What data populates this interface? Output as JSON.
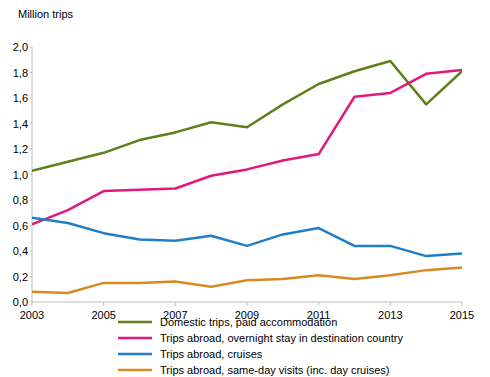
{
  "chart_data": {
    "type": "line",
    "y_label": "Million trips",
    "x": [
      2003,
      2004,
      2005,
      2006,
      2007,
      2008,
      2009,
      2010,
      2011,
      2012,
      2013,
      2014,
      2015
    ],
    "xlim": [
      2003,
      2015
    ],
    "xticks": [
      2003,
      2005,
      2007,
      2009,
      2011,
      2013,
      2015
    ],
    "ylim": [
      0,
      2
    ],
    "yticks": [
      {
        "value": 0,
        "label": "0,0"
      },
      {
        "value": 0.2,
        "label": "0,2"
      },
      {
        "value": 0.4,
        "label": "0,4"
      },
      {
        "value": 0.6,
        "label": "0,6"
      },
      {
        "value": 0.8,
        "label": "0,8"
      },
      {
        "value": 1,
        "label": "1,0"
      },
      {
        "value": 1.2,
        "label": "1,2"
      },
      {
        "value": 1.4,
        "label": "1,4"
      },
      {
        "value": 1.6,
        "label": "1,6"
      },
      {
        "value": 1.8,
        "label": "1,8"
      },
      {
        "value": 2,
        "label": "2,0"
      }
    ],
    "grid": false,
    "legend": "bottom",
    "series": [
      {
        "name": "Domestic trips, paid accommodation",
        "color": "#5f7f1a",
        "values": [
          1.03,
          1.1,
          1.17,
          1.27,
          1.33,
          1.41,
          1.37,
          1.55,
          1.71,
          1.81,
          1.89,
          1.55,
          1.81
        ]
      },
      {
        "name": "Trips abroad, overnight stay in destination country",
        "color": "#e2187c",
        "values": [
          0.61,
          0.72,
          0.87,
          0.88,
          0.89,
          0.99,
          1.04,
          1.11,
          1.16,
          1.61,
          1.64,
          1.79,
          1.82
        ]
      },
      {
        "name": "Trips abroad, cruises",
        "color": "#1e7fc6",
        "values": [
          0.66,
          0.62,
          0.54,
          0.49,
          0.48,
          0.52,
          0.44,
          0.53,
          0.58,
          0.44,
          0.44,
          0.36,
          0.38
        ]
      },
      {
        "name": "Trips abroad, same-day visits (inc. day cruises)",
        "color": "#d88a22",
        "values": [
          0.08,
          0.07,
          0.15,
          0.15,
          0.16,
          0.12,
          0.17,
          0.18,
          0.21,
          0.18,
          0.21,
          0.25,
          0.27
        ]
      }
    ]
  }
}
